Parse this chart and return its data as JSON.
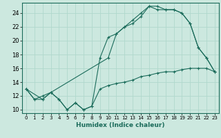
{
  "xlabel": "Humidex (Indice chaleur)",
  "bg_color": "#cce8df",
  "line_color": "#1a6b5a",
  "grid_color": "#b0d8cc",
  "xlim": [
    -0.5,
    23.5
  ],
  "ylim": [
    9.5,
    25.5
  ],
  "xticks": [
    0,
    1,
    2,
    3,
    4,
    5,
    6,
    7,
    8,
    9,
    10,
    11,
    12,
    13,
    14,
    15,
    16,
    17,
    18,
    19,
    20,
    21,
    22,
    23
  ],
  "yticks": [
    10,
    12,
    14,
    16,
    18,
    20,
    22,
    24
  ],
  "line1_x": [
    0,
    1,
    2,
    3,
    4,
    5,
    6,
    7,
    8,
    9,
    10,
    11,
    12,
    13,
    14,
    15,
    16,
    17,
    18,
    19,
    20,
    21,
    22,
    23
  ],
  "line1_y": [
    13,
    11.5,
    11.5,
    12.5,
    11.5,
    10,
    11,
    10,
    10.5,
    13,
    13.5,
    13.8,
    14,
    14.3,
    14.8,
    15,
    15.3,
    15.5,
    15.5,
    15.8,
    16,
    16,
    16,
    15.5
  ],
  "line2_x": [
    0,
    1,
    2,
    3,
    4,
    5,
    6,
    7,
    8,
    9,
    10,
    11,
    12,
    13,
    14,
    15,
    16,
    17,
    18,
    19,
    20,
    21,
    22,
    23
  ],
  "line2_y": [
    13,
    11.5,
    12,
    12.5,
    11.5,
    10,
    11,
    10,
    10.5,
    17.5,
    20.5,
    21,
    22,
    22.5,
    23.5,
    25,
    25,
    24.5,
    24.5,
    24,
    22.5,
    19,
    17.5,
    15.5
  ],
  "line3_x": [
    0,
    2,
    3,
    10,
    11,
    12,
    13,
    14,
    15,
    16,
    17,
    18,
    19,
    20,
    21,
    22,
    23
  ],
  "line3_y": [
    13,
    11.5,
    12.5,
    17.5,
    21,
    22,
    23,
    24,
    25,
    24.5,
    24.5,
    24.5,
    24,
    22.5,
    19,
    17.5,
    15.5
  ]
}
